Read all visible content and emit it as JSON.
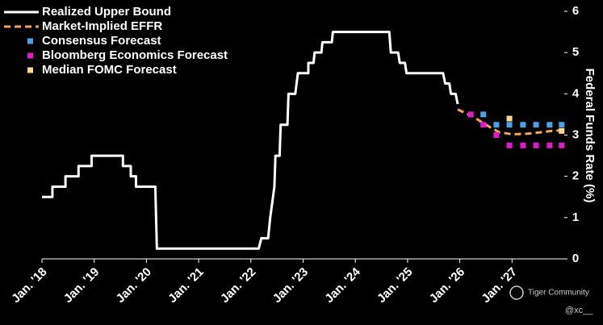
{
  "chart_data": {
    "type": "line",
    "y_label": "Federal Funds Rate (%)",
    "xlim": [
      2018,
      2028
    ],
    "ylim": [
      0,
      6
    ],
    "xticks": [
      {
        "value": 2018,
        "label": "Jan. '18"
      },
      {
        "value": 2019,
        "label": "Jan. '19"
      },
      {
        "value": 2020,
        "label": "Jan. '20"
      },
      {
        "value": 2021,
        "label": "Jan. '21"
      },
      {
        "value": 2022,
        "label": "Jan. '22"
      },
      {
        "value": 2023,
        "label": "Jan. '23"
      },
      {
        "value": 2024,
        "label": "Jan. '24"
      },
      {
        "value": 2025,
        "label": "Jan. '25"
      },
      {
        "value": 2026,
        "label": "Jan. '26"
      },
      {
        "value": 2027,
        "label": "Jan. '27"
      }
    ],
    "yticks": [
      0,
      1,
      2,
      3,
      4,
      5,
      6
    ],
    "legend": "top-left",
    "series": [
      {
        "name": "Realized Upper Bound",
        "color": "#ffffff",
        "style": "solid",
        "x": [
          2018,
          2018.2,
          2018.2,
          2018.45,
          2018.45,
          2018.7,
          2018.7,
          2018.95,
          2018.95,
          2019.55,
          2019.55,
          2019.7,
          2019.7,
          2019.8,
          2019.8,
          2020.17,
          2020.2,
          2022.15,
          2022.2,
          2022.33,
          2022.37,
          2022.45,
          2022.47,
          2022.55,
          2022.57,
          2022.7,
          2022.72,
          2022.85,
          2022.9,
          2023.1,
          2023.1,
          2023.2,
          2023.22,
          2023.35,
          2023.37,
          2023.55,
          2023.57,
          2024.65,
          2024.68,
          2024.82,
          2024.85,
          2024.95,
          2024.98,
          2025.68,
          2025.72,
          2025.8,
          2025.83,
          2025.92,
          2025.96
        ],
        "values": [
          1.5,
          1.5,
          1.75,
          1.75,
          2.0,
          2.0,
          2.25,
          2.25,
          2.5,
          2.5,
          2.25,
          2.25,
          2.0,
          2.0,
          1.75,
          1.75,
          0.25,
          0.25,
          0.5,
          0.5,
          1.0,
          1.75,
          2.5,
          2.5,
          3.25,
          3.25,
          4.0,
          4.0,
          4.5,
          4.5,
          4.75,
          4.75,
          5.0,
          5.0,
          5.25,
          5.25,
          5.5,
          5.5,
          5.0,
          5.0,
          4.75,
          4.75,
          4.5,
          4.5,
          4.25,
          4.25,
          4.0,
          4.0,
          3.75
        ]
      },
      {
        "name": "Market-Implied EFFR",
        "color": "#f5a65b",
        "style": "dashed",
        "x": [
          2025.96,
          2026.25,
          2026.5,
          2026.75,
          2027.0,
          2027.25,
          2027.5,
          2027.75,
          2028.0
        ],
        "values": [
          3.62,
          3.45,
          3.25,
          3.07,
          3.02,
          3.03,
          3.06,
          3.1,
          3.12
        ]
      },
      {
        "name": "Consensus Forecast",
        "color": "#4aa3e8",
        "style": "square",
        "x": [
          2026.45,
          2026.7,
          2026.95,
          2027.21,
          2027.46,
          2027.72,
          2027.95
        ],
        "values": [
          3.5,
          3.25,
          3.25,
          3.25,
          3.25,
          3.25,
          3.25
        ]
      },
      {
        "name": "Bloomberg Economics Forecast",
        "color": "#e619c8",
        "style": "square",
        "x": [
          2026.21,
          2026.45,
          2026.7,
          2026.95,
          2027.21,
          2027.46,
          2027.72,
          2027.95
        ],
        "values": [
          3.5,
          3.25,
          3.0,
          2.75,
          2.75,
          2.75,
          2.75,
          2.75
        ]
      },
      {
        "name": "Median FOMC Forecast",
        "color": "#f7d98c",
        "style": "square",
        "x": [
          2026.95,
          2027.95
        ],
        "values": [
          3.4,
          3.1
        ]
      }
    ],
    "watermark": "Tiger Community",
    "credit": "@xc__"
  }
}
